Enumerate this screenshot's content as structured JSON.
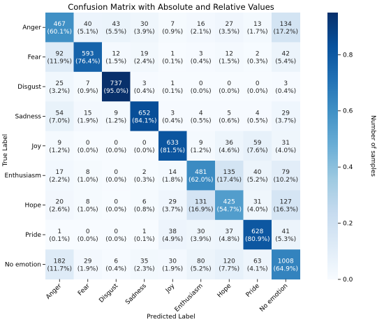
{
  "chart_data": {
    "type": "heatmap",
    "title": "Confusion Matrix with Absolute and Relative Values",
    "xlabel": "Predicted Label",
    "ylabel": "True Label",
    "labels": [
      "Anger",
      "Fear",
      "Disgust",
      "Sadness",
      "Joy",
      "Enthusiasm",
      "Hope",
      "Pride",
      "No emotion"
    ],
    "counts": [
      [
        467,
        40,
        43,
        30,
        7,
        16,
        27,
        13,
        134
      ],
      [
        92,
        593,
        12,
        19,
        1,
        3,
        12,
        2,
        42
      ],
      [
        25,
        7,
        737,
        3,
        1,
        0,
        0,
        0,
        3
      ],
      [
        54,
        15,
        9,
        652,
        3,
        4,
        5,
        4,
        29
      ],
      [
        9,
        0,
        0,
        0,
        633,
        9,
        36,
        59,
        31
      ],
      [
        17,
        8,
        0,
        2,
        14,
        481,
        135,
        40,
        79
      ],
      [
        20,
        8,
        0,
        6,
        29,
        131,
        425,
        31,
        127
      ],
      [
        1,
        0,
        0,
        1,
        38,
        30,
        37,
        628,
        41
      ],
      [
        182,
        29,
        6,
        35,
        30,
        80,
        120,
        63,
        1008
      ]
    ],
    "percents": [
      [
        "60.1%",
        "5.1%",
        "5.5%",
        "3.9%",
        "0.9%",
        "2.1%",
        "3.5%",
        "1.7%",
        "17.2%"
      ],
      [
        "11.9%",
        "76.4%",
        "1.5%",
        "2.4%",
        "0.1%",
        "0.4%",
        "1.5%",
        "0.3%",
        "5.4%"
      ],
      [
        "3.2%",
        "0.9%",
        "95.0%",
        "0.4%",
        "0.1%",
        "0.0%",
        "0.0%",
        "0.0%",
        "0.4%"
      ],
      [
        "7.0%",
        "1.9%",
        "1.2%",
        "84.1%",
        "0.4%",
        "0.5%",
        "0.6%",
        "0.5%",
        "3.7%"
      ],
      [
        "1.2%",
        "0.0%",
        "0.0%",
        "0.0%",
        "81.5%",
        "1.2%",
        "4.6%",
        "7.6%",
        "4.0%"
      ],
      [
        "2.2%",
        "1.0%",
        "0.0%",
        "0.3%",
        "1.8%",
        "62.0%",
        "17.4%",
        "5.2%",
        "10.2%"
      ],
      [
        "2.6%",
        "1.0%",
        "0.0%",
        "0.8%",
        "3.7%",
        "16.9%",
        "54.7%",
        "4.0%",
        "16.3%"
      ],
      [
        "0.1%",
        "0.0%",
        "0.0%",
        "0.1%",
        "4.9%",
        "3.9%",
        "4.8%",
        "80.9%",
        "5.3%"
      ],
      [
        "11.7%",
        "1.9%",
        "0.4%",
        "2.3%",
        "1.9%",
        "5.2%",
        "7.7%",
        "4.1%",
        "64.9%"
      ]
    ],
    "colorbar": {
      "label": "Number of samples",
      "ticks": [
        "0.0",
        "0.2",
        "0.4",
        "0.6",
        "0.8"
      ],
      "tick_values": [
        0.0,
        0.2,
        0.4,
        0.6,
        0.8
      ],
      "range": [
        0,
        0.95
      ]
    },
    "colormap": "Blues"
  }
}
